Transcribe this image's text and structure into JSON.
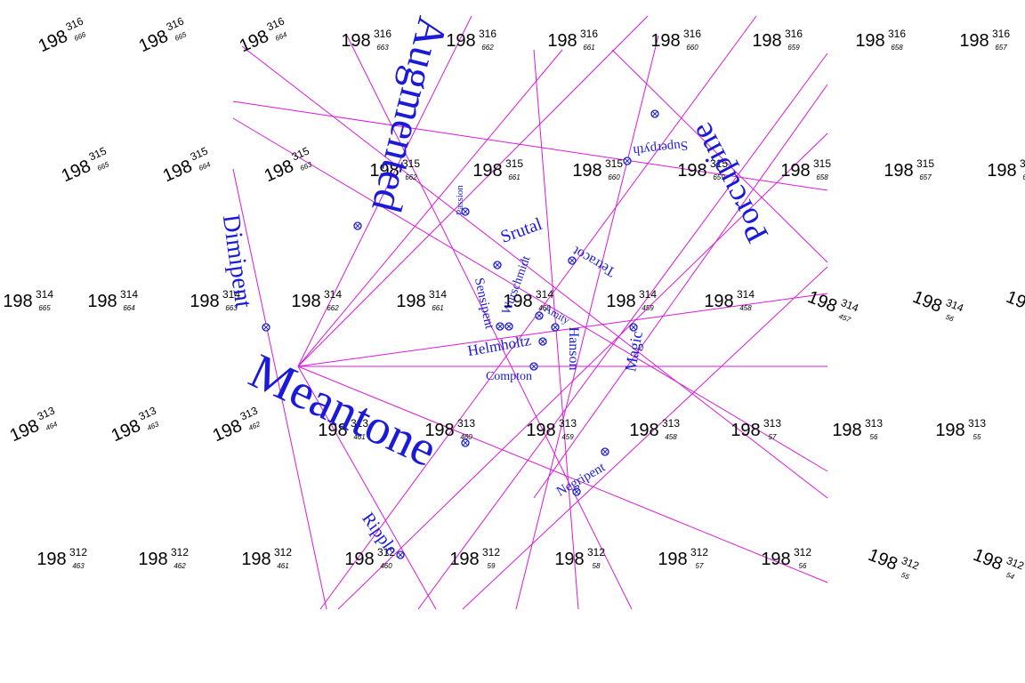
{
  "diagram": {
    "line_color": "#d81ad8",
    "label_color": "#1a1ad8",
    "cell_base": "198",
    "cell_rows": [
      [
        "316",
        [
          "666",
          "665",
          "664",
          "663",
          "662",
          "661",
          "660",
          "659",
          "658",
          "657"
        ]
      ],
      [
        "315",
        [
          "665",
          "664",
          "663",
          "662",
          "661",
          "660",
          "659",
          "658",
          "657",
          "656"
        ]
      ],
      [
        "314",
        [
          "665",
          "664",
          "663",
          "662",
          "661",
          "460",
          "459",
          "458",
          "457",
          "56",
          ""
        ]
      ],
      [
        "313",
        [
          "464",
          "463",
          "462",
          "461",
          "460",
          "459",
          "458",
          "57",
          "56",
          "55"
        ]
      ],
      [
        "312",
        [
          "463",
          "462",
          "461",
          "460",
          "59",
          "58",
          "57",
          "56",
          "55",
          "54"
        ]
      ]
    ],
    "temperaments": [
      "Augmented",
      "Dimipent",
      "Meantone",
      "Porcupine",
      "Superpyth",
      "Srutal",
      "Tetracot",
      "Sensipent",
      "Wurschmidt",
      "Helmholtz",
      "Hanson",
      "Magic",
      "Compton",
      "Negripent",
      "Ripple",
      "Passion",
      "Amity"
    ]
  }
}
